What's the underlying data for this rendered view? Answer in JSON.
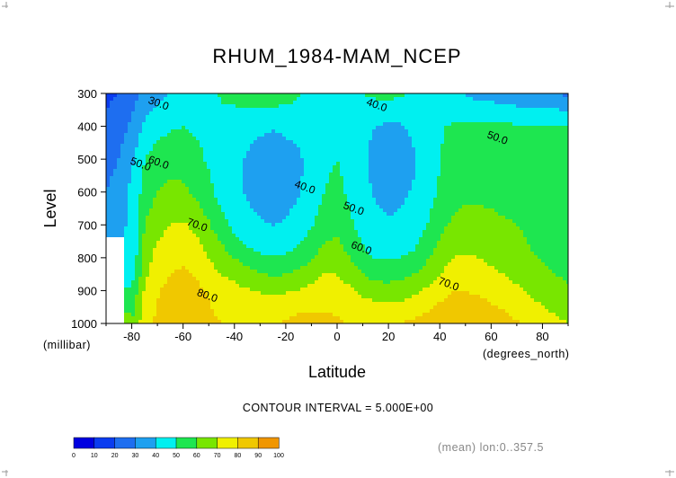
{
  "chart_data": {
    "type": "heatmap",
    "title": "RHUM_1984-MAM_NCEP",
    "xlabel": "Latitude",
    "ylabel": "Level",
    "x_units": "(degrees_north)",
    "y_units": "(millibar)",
    "x_ticks": [
      -80,
      -60,
      -40,
      -20,
      0,
      20,
      40,
      60,
      80
    ],
    "y_ticks": [
      300,
      400,
      500,
      600,
      700,
      800,
      900,
      1000
    ],
    "xlim": [
      -90,
      90
    ],
    "ylim": [
      1000,
      300
    ],
    "contour_interval_text": "CONTOUR INTERVAL = 5.000E+00",
    "footer_note": "(mean) lon:0..357.5",
    "colorbar_ticks": [
      0,
      10,
      20,
      30,
      40,
      50,
      60,
      70,
      80,
      90,
      100
    ],
    "color_levels": [
      "#7a00c8",
      "#0000e0",
      "#0a3cf0",
      "#1e6ef0",
      "#1ea0f0",
      "#00f0f0",
      "#1ee650",
      "#78e600",
      "#f0f000",
      "#f0c800",
      "#f09600",
      "#f05a00",
      "#f00000"
    ],
    "contour_labels": [
      {
        "text": "30.0",
        "lat": -70,
        "lev": 340
      },
      {
        "text": "40.0",
        "lat": 15,
        "lev": 345
      },
      {
        "text": "50.0",
        "lat": 62,
        "lev": 445
      },
      {
        "text": "50.0",
        "lat": -77,
        "lev": 525
      },
      {
        "text": "60.0",
        "lat": -70,
        "lev": 520
      },
      {
        "text": "40.0",
        "lat": -13,
        "lev": 595
      },
      {
        "text": "50.0",
        "lat": 6,
        "lev": 660
      },
      {
        "text": "70.0",
        "lat": -55,
        "lev": 710
      },
      {
        "text": "60.0",
        "lat": 9,
        "lev": 780
      },
      {
        "text": "70.0",
        "lat": 43,
        "lev": 890
      },
      {
        "text": "80.0",
        "lat": -51,
        "lev": 925
      }
    ],
    "y_levels": [
      1000,
      925,
      850,
      775,
      700,
      600,
      500,
      400,
      300
    ],
    "x_lats": [
      -90,
      -85,
      -80,
      -77,
      -75,
      -70,
      -65,
      -60,
      -55,
      -50,
      -45,
      -40,
      -35,
      -30,
      -25,
      -20,
      -15,
      -10,
      -5,
      0,
      5,
      10,
      15,
      20,
      25,
      30,
      35,
      40,
      45,
      50,
      55,
      60,
      65,
      70,
      75,
      80,
      85,
      90
    ],
    "values": [
      [
        null,
        null,
        60,
        70,
        76,
        82,
        86,
        90,
        88,
        82,
        80,
        79,
        79,
        79,
        79,
        81,
        83,
        83,
        82,
        81,
        80,
        79,
        78,
        79,
        80,
        82,
        84,
        86,
        87,
        87,
        86,
        85,
        83,
        81,
        79,
        75,
        72,
        70
      ],
      [
        null,
        null,
        55,
        65,
        73,
        80,
        85,
        88,
        86,
        80,
        77,
        76,
        74,
        73,
        72,
        73,
        75,
        77,
        78,
        77,
        74,
        71,
        69,
        68,
        69,
        72,
        75,
        79,
        82,
        82,
        81,
        79,
        77,
        74,
        71,
        68,
        66,
        64
      ],
      [
        null,
        null,
        45,
        58,
        68,
        76,
        80,
        82,
        79,
        74,
        70,
        67,
        64,
        61,
        59,
        60,
        62,
        66,
        70,
        70,
        66,
        60,
        56,
        56,
        57,
        60,
        64,
        70,
        74,
        75,
        74,
        72,
        70,
        67,
        64,
        62,
        60,
        58
      ],
      [
        null,
        null,
        40,
        54,
        64,
        72,
        75,
        76,
        73,
        68,
        62,
        56,
        51,
        48,
        47,
        48,
        51,
        56,
        62,
        63,
        57,
        51,
        46,
        46,
        47,
        50,
        56,
        63,
        68,
        69,
        68,
        66,
        64,
        62,
        60,
        58,
        57,
        56
      ],
      [
        30,
        37,
        42,
        52,
        60,
        66,
        70,
        71,
        68,
        61,
        53,
        47,
        43,
        41,
        40,
        41,
        44,
        49,
        55,
        58,
        52,
        46,
        42,
        41,
        42,
        45,
        50,
        57,
        62,
        64,
        63,
        62,
        61,
        60,
        59,
        58,
        57,
        56
      ],
      [
        30,
        36,
        42,
        49,
        55,
        60,
        63,
        62,
        58,
        52,
        46,
        43,
        39,
        36,
        34,
        36,
        39,
        44,
        50,
        53,
        48,
        43,
        39,
        37,
        38,
        41,
        45,
        51,
        55,
        58,
        58,
        58,
        57,
        57,
        56,
        56,
        55,
        55
      ],
      [
        25,
        30,
        38,
        45,
        50,
        55,
        56,
        55,
        52,
        49,
        47,
        43,
        39,
        36,
        33,
        34,
        38,
        44,
        48,
        50,
        46,
        42,
        36,
        33,
        35,
        39,
        44,
        50,
        53,
        55,
        55,
        56,
        55,
        56,
        55,
        56,
        55,
        55
      ],
      [
        22,
        26,
        32,
        38,
        42,
        46,
        49,
        50,
        49,
        48,
        47,
        45,
        43,
        42,
        41,
        43,
        44,
        47,
        48,
        48,
        46,
        43,
        40,
        38,
        39,
        42,
        46,
        49,
        51,
        52,
        51,
        52,
        52,
        51,
        51,
        51,
        51,
        51
      ],
      [
        18,
        20,
        26,
        30,
        33,
        37,
        41,
        44,
        47,
        48,
        51,
        53,
        55,
        56,
        56,
        54,
        51,
        48,
        45,
        43,
        46,
        50,
        52,
        53,
        51,
        48,
        46,
        44,
        42,
        39,
        37,
        36,
        34,
        33,
        33,
        33,
        30,
        28
      ]
    ]
  }
}
